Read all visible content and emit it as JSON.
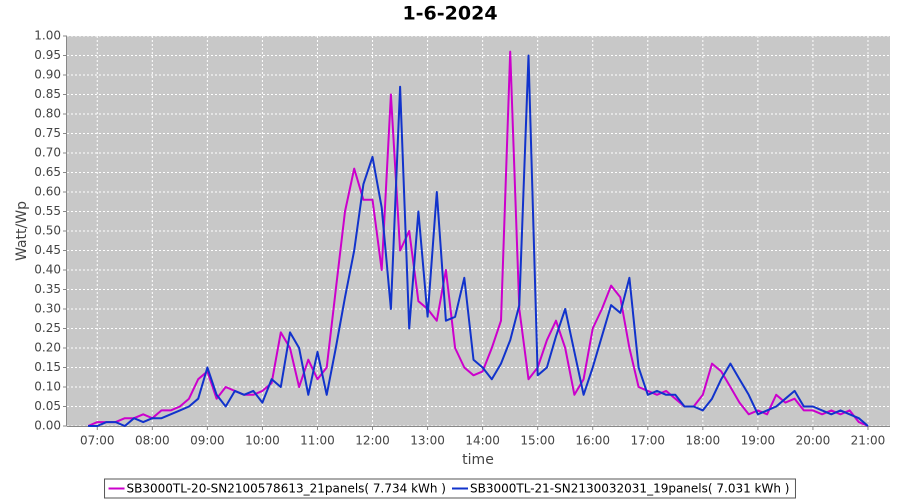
{
  "chart_data": {
    "type": "line",
    "title": "1-6-2024",
    "x_label": "time",
    "y_label": "Watt/Wp",
    "x": [
      "06:50",
      "07:00",
      "07:10",
      "07:20",
      "07:30",
      "07:40",
      "07:50",
      "08:00",
      "08:10",
      "08:20",
      "08:30",
      "08:40",
      "08:50",
      "09:00",
      "09:10",
      "09:20",
      "09:30",
      "09:40",
      "09:50",
      "10:00",
      "10:10",
      "10:20",
      "10:30",
      "10:40",
      "10:50",
      "11:00",
      "11:10",
      "11:20",
      "11:30",
      "11:40",
      "11:50",
      "12:00",
      "12:10",
      "12:20",
      "12:30",
      "12:40",
      "12:50",
      "13:00",
      "13:10",
      "13:20",
      "13:30",
      "13:40",
      "13:50",
      "14:00",
      "14:10",
      "14:20",
      "14:30",
      "14:40",
      "14:50",
      "15:00",
      "15:10",
      "15:20",
      "15:30",
      "15:40",
      "15:50",
      "16:00",
      "16:10",
      "16:20",
      "16:30",
      "16:40",
      "16:50",
      "17:00",
      "17:10",
      "17:20",
      "17:30",
      "17:40",
      "17:50",
      "18:00",
      "18:10",
      "18:20",
      "18:30",
      "18:40",
      "18:50",
      "19:00",
      "19:10",
      "19:20",
      "19:30",
      "19:40",
      "19:50",
      "20:00",
      "20:10",
      "20:20",
      "20:30",
      "20:40",
      "20:50",
      "21:00"
    ],
    "series": [
      {
        "name": "SB3000TL-20-SN2100578613_21panels( 7.734 kWh )",
        "color": "#cc00cc",
        "values": [
          0.0,
          0.01,
          0.01,
          0.01,
          0.02,
          0.02,
          0.03,
          0.02,
          0.04,
          0.04,
          0.05,
          0.07,
          0.12,
          0.14,
          0.07,
          0.1,
          0.09,
          0.08,
          0.08,
          0.09,
          0.11,
          0.24,
          0.2,
          0.1,
          0.17,
          0.12,
          0.15,
          0.35,
          0.55,
          0.66,
          0.58,
          0.58,
          0.4,
          0.85,
          0.45,
          0.5,
          0.32,
          0.3,
          0.27,
          0.4,
          0.2,
          0.15,
          0.13,
          0.14,
          0.2,
          0.27,
          0.96,
          0.3,
          0.12,
          0.15,
          0.22,
          0.27,
          0.2,
          0.08,
          0.12,
          0.25,
          0.3,
          0.36,
          0.33,
          0.2,
          0.1,
          0.09,
          0.08,
          0.09,
          0.07,
          0.05,
          0.05,
          0.08,
          0.16,
          0.14,
          0.1,
          0.06,
          0.03,
          0.04,
          0.03,
          0.08,
          0.06,
          0.07,
          0.04,
          0.04,
          0.03,
          0.04,
          0.03,
          0.04,
          0.01,
          0.0
        ]
      },
      {
        "name": "SB3000TL-21-SN2130032031_19panels( 7.031 kWh )",
        "color": "#1133cc",
        "values": [
          0.0,
          0.0,
          0.01,
          0.01,
          0.0,
          0.02,
          0.01,
          0.02,
          0.02,
          0.03,
          0.04,
          0.05,
          0.07,
          0.15,
          0.08,
          0.05,
          0.09,
          0.08,
          0.09,
          0.06,
          0.12,
          0.1,
          0.24,
          0.2,
          0.08,
          0.19,
          0.08,
          0.2,
          0.33,
          0.45,
          0.62,
          0.69,
          0.56,
          0.3,
          0.87,
          0.25,
          0.55,
          0.28,
          0.6,
          0.27,
          0.28,
          0.38,
          0.17,
          0.15,
          0.12,
          0.16,
          0.22,
          0.31,
          0.95,
          0.13,
          0.15,
          0.23,
          0.3,
          0.19,
          0.08,
          0.15,
          0.23,
          0.31,
          0.29,
          0.38,
          0.15,
          0.08,
          0.09,
          0.08,
          0.08,
          0.05,
          0.05,
          0.04,
          0.07,
          0.12,
          0.16,
          0.12,
          0.08,
          0.03,
          0.04,
          0.05,
          0.07,
          0.09,
          0.05,
          0.05,
          0.04,
          0.03,
          0.04,
          0.03,
          0.02,
          0.0
        ]
      }
    ],
    "xlim": [
      "06:27",
      "21:24"
    ],
    "xticks": [
      "07:00",
      "08:00",
      "09:00",
      "10:00",
      "11:00",
      "12:00",
      "13:00",
      "14:00",
      "15:00",
      "16:00",
      "17:00",
      "18:00",
      "19:00",
      "20:00",
      "21:00"
    ],
    "ylim": [
      0,
      1.0
    ],
    "yticks": [
      {
        "value": 0,
        "label": "0.00"
      },
      {
        "value": 0.05,
        "label": "0.05"
      },
      {
        "value": 0.1,
        "label": "0.10"
      },
      {
        "value": 0.15,
        "label": "0.15"
      },
      {
        "value": 0.2,
        "label": "0.20"
      },
      {
        "value": 0.25,
        "label": "0.25"
      },
      {
        "value": 0.3,
        "label": "0.30"
      },
      {
        "value": 0.35,
        "label": "0.35"
      },
      {
        "value": 0.4,
        "label": "0.40"
      },
      {
        "value": 0.45,
        "label": "0.45"
      },
      {
        "value": 0.5,
        "label": "0.50"
      },
      {
        "value": 0.55,
        "label": "0.55"
      },
      {
        "value": 0.6,
        "label": "0.60"
      },
      {
        "value": 0.65,
        "label": "0.65"
      },
      {
        "value": 0.7,
        "label": "0.70"
      },
      {
        "value": 0.75,
        "label": "0.75"
      },
      {
        "value": 0.8,
        "label": "0.80"
      },
      {
        "value": 0.85,
        "label": "0.85"
      },
      {
        "value": 0.9,
        "label": "0.90"
      },
      {
        "value": 0.95,
        "label": "0.95"
      },
      {
        "value": 1.0,
        "label": "1.00"
      }
    ],
    "grid": true,
    "legend": "bottom"
  }
}
